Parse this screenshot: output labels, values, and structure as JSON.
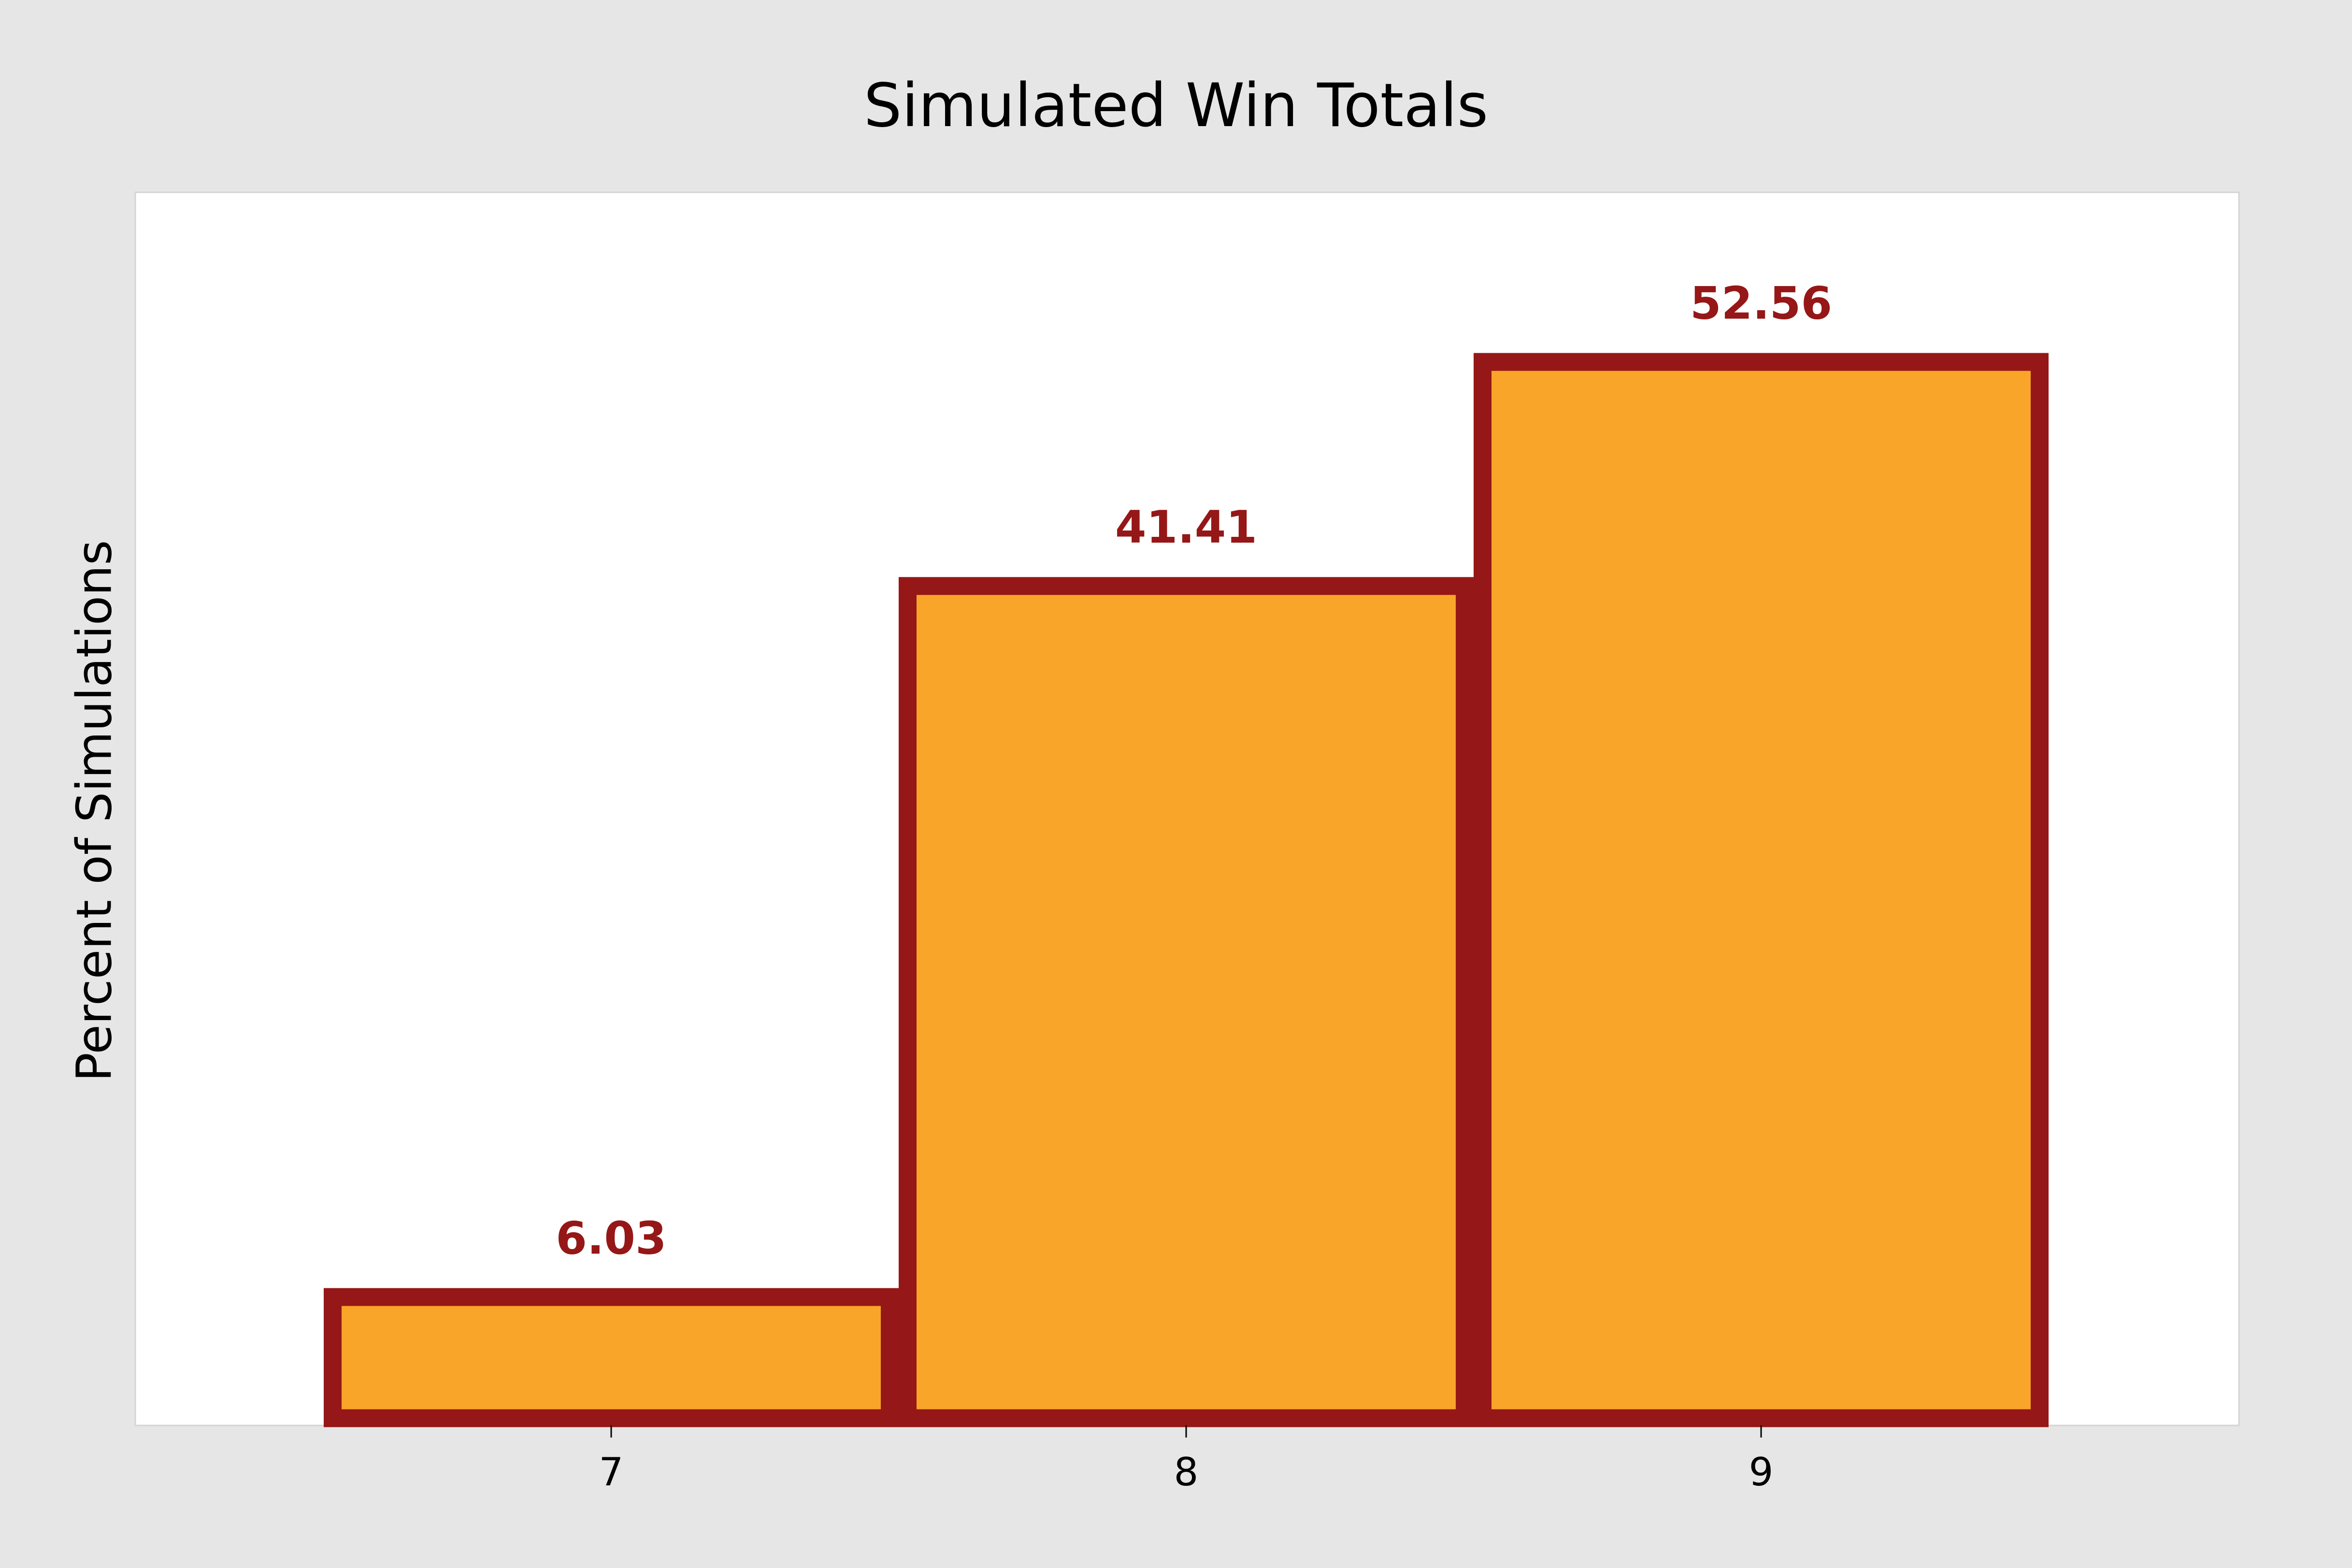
{
  "chart_data": {
    "type": "bar",
    "title": "Simulated Win Totals",
    "y_label": "Percent of Simulations",
    "categories": [
      "7",
      "8",
      "9"
    ],
    "values": [
      6.03,
      41.41,
      52.56
    ],
    "color": "#f8a529",
    "edge_color": "#961717",
    "label_color": "#961717",
    "ylim": [
      0,
      61
    ]
  }
}
